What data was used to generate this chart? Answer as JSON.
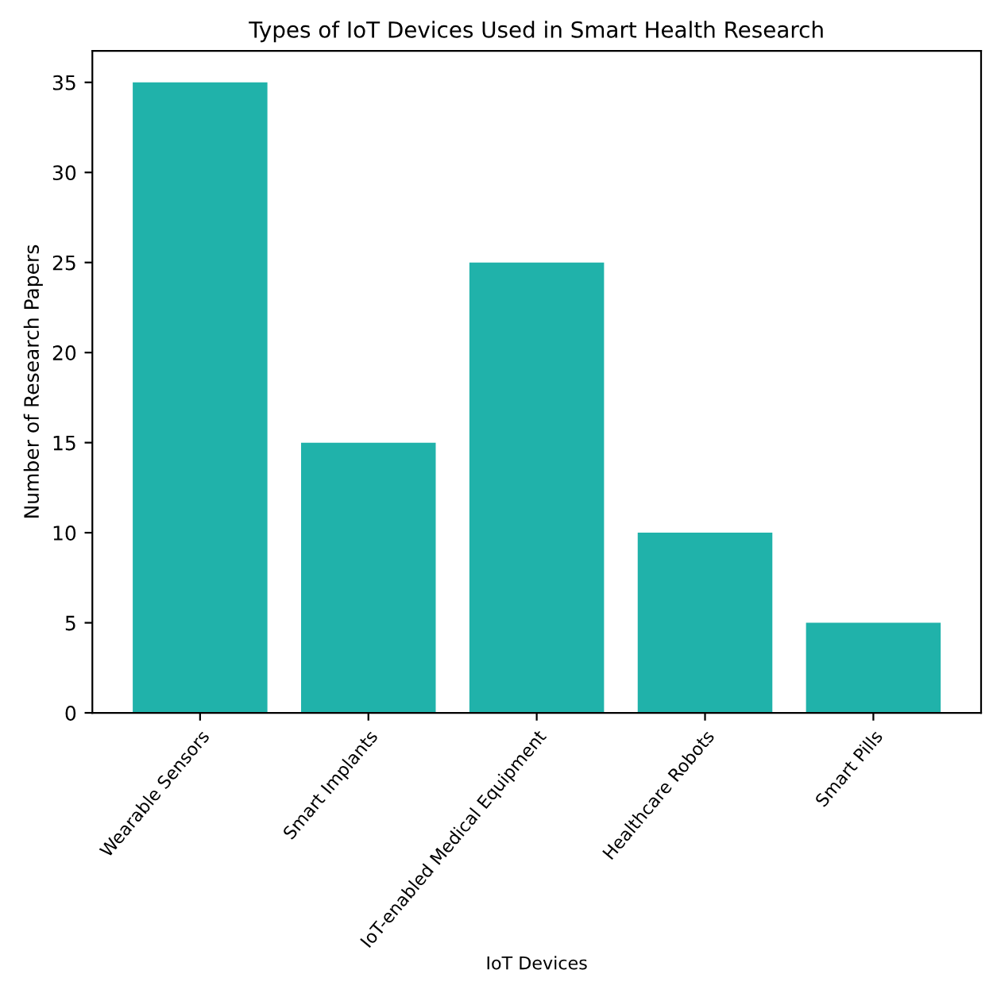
{
  "chart_data": {
    "type": "bar",
    "title": "Types of IoT Devices Used in Smart Health Research",
    "xlabel": "IoT Devices",
    "ylabel": "Number of Research Papers",
    "categories": [
      "Wearable Sensors",
      "Smart Implants",
      "IoT-enabled Medical Equipment",
      "Healthcare Robots",
      "Smart Pills"
    ],
    "values": [
      35,
      15,
      25,
      10,
      5
    ],
    "color": "#20b2aa",
    "ylim": [
      0,
      36.75
    ],
    "yticks": [
      0,
      5,
      10,
      15,
      20,
      25,
      30,
      35
    ],
    "grid": false
  }
}
